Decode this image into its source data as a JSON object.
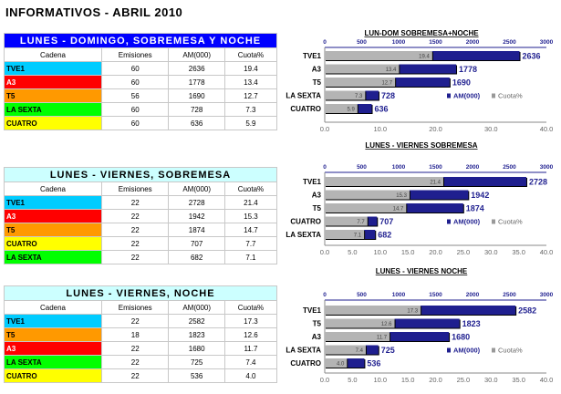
{
  "title": "INFORMATIVOS - ABRIL 2010",
  "columns": [
    "Cadena",
    "Emisiones",
    "AM(000)",
    "Cuota%"
  ],
  "channel_colors": {
    "TVE1": "#00ccff",
    "A3": "#ff0000",
    "T5": "#ff9900",
    "LA SEXTA": "#00ff00",
    "CUATRO": "#ffff00"
  },
  "tables": [
    {
      "caption": "LUNES - DOMINGO, SOBREMESA Y NOCHE",
      "caption_bg": "#0000ff",
      "caption_color": "#ffffff",
      "rows": [
        [
          "TVE1",
          "60",
          "2636",
          "19.4"
        ],
        [
          "A3",
          "60",
          "1778",
          "13.4"
        ],
        [
          "T5",
          "56",
          "1690",
          "12.7"
        ],
        [
          "LA SEXTA",
          "60",
          "728",
          "7.3"
        ],
        [
          "CUATRO",
          "60",
          "636",
          "5.9"
        ]
      ]
    },
    {
      "caption": "LUNES - VIERNES, SOBREMESA",
      "caption_bg": "#ccffff",
      "caption_color": "#000000",
      "rows": [
        [
          "TVE1",
          "22",
          "2728",
          "21.4"
        ],
        [
          "A3",
          "22",
          "1942",
          "15.3"
        ],
        [
          "T5",
          "22",
          "1874",
          "14.7"
        ],
        [
          "CUATRO",
          "22",
          "707",
          "7.7"
        ],
        [
          "LA SEXTA",
          "22",
          "682",
          "7.1"
        ]
      ]
    },
    {
      "caption": "LUNES - VIERNES, NOCHE",
      "caption_bg": "#ccffff",
      "caption_color": "#000000",
      "rows": [
        [
          "TVE1",
          "22",
          "2582",
          "17.3"
        ],
        [
          "T5",
          "18",
          "1823",
          "12.6"
        ],
        [
          "A3",
          "22",
          "1680",
          "11.7"
        ],
        [
          "LA SEXTA",
          "22",
          "725",
          "7.4"
        ],
        [
          "CUATRO",
          "22",
          "536",
          "4.0"
        ]
      ]
    }
  ],
  "chart_data": [
    {
      "type": "bar",
      "title": "LUN-DOM SOBREMESA+NOCHE",
      "categories": [
        "TVE1",
        "A3",
        "T5",
        "LA SEXTA",
        "CUATRO"
      ],
      "series": [
        {
          "name": "AM(000)",
          "values": [
            2636,
            1778,
            1690,
            728,
            636
          ],
          "axis": "top",
          "range": [
            0,
            3000
          ],
          "ticks": [
            "0",
            "500",
            "1000",
            "1500",
            "2000",
            "2500",
            "3000"
          ],
          "color": "#1f1f8f"
        },
        {
          "name": "Cuota%",
          "values": [
            19.4,
            13.4,
            12.7,
            7.3,
            5.9
          ],
          "axis": "bottom",
          "range": [
            0,
            40
          ],
          "ticks": [
            "0.0",
            "10.0",
            "20.0",
            "30.0",
            "40.0"
          ],
          "color": "#b4b4b4"
        }
      ],
      "legend": "bottom-right"
    },
    {
      "type": "bar",
      "title": "LUNES - VIERNES SOBREMESA",
      "categories": [
        "TVE1",
        "A3",
        "T5",
        "CUATRO",
        "LA SEXTA"
      ],
      "series": [
        {
          "name": "AM(000)",
          "values": [
            2728,
            1942,
            1874,
            707,
            682
          ],
          "axis": "top",
          "range": [
            0,
            3000
          ],
          "ticks": [
            "0",
            "500",
            "1000",
            "1500",
            "2000",
            "2500",
            "3000"
          ],
          "color": "#1f1f8f"
        },
        {
          "name": "Cuota%",
          "values": [
            21.4,
            15.3,
            14.7,
            7.7,
            7.1
          ],
          "axis": "bottom",
          "range": [
            0,
            40
          ],
          "ticks": [
            "0.0",
            "5.0",
            "10.0",
            "15.0",
            "20.0",
            "25.0",
            "30.0",
            "35.0",
            "40.0"
          ],
          "color": "#b4b4b4"
        }
      ],
      "legend": "bottom-right"
    },
    {
      "type": "bar",
      "title": "LUNES - VIERNES  NOCHE",
      "categories": [
        "TVE1",
        "T5",
        "A3",
        "LA SEXTA",
        "CUATRO"
      ],
      "series": [
        {
          "name": "AM(000)",
          "values": [
            2582,
            1823,
            1680,
            725,
            536
          ],
          "axis": "top",
          "range": [
            0,
            3000
          ],
          "ticks": [
            "0",
            "500",
            "1000",
            "1500",
            "2000",
            "2500",
            "3000"
          ],
          "color": "#1f1f8f"
        },
        {
          "name": "Cuota%",
          "values": [
            17.3,
            12.6,
            11.7,
            7.4,
            4.0
          ],
          "axis": "bottom",
          "range": [
            0,
            40
          ],
          "ticks": [
            "0.0",
            "5.0",
            "10.0",
            "15.0",
            "20.0",
            "25.0",
            "30.0",
            "35.0",
            "40.0"
          ],
          "color": "#b4b4b4"
        }
      ],
      "legend": "bottom-right"
    }
  ]
}
